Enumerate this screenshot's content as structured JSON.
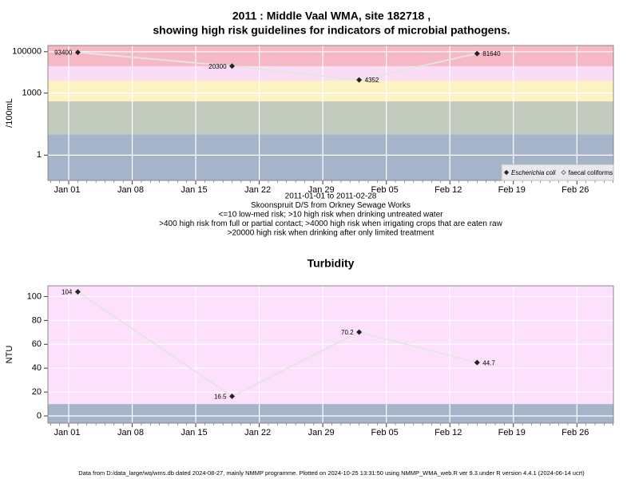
{
  "chart_data": [
    {
      "type": "line",
      "title": "2011 : Middle Vaal WMA, site 182718 ,",
      "subtitle": "showing high risk guidelines for indicators of microbial pathogens.",
      "ylabel": "/100mL",
      "log_scale": true,
      "grid": true,
      "legend": "bottom-right",
      "notes": [
        "2011-01-01 to 2011-02-28",
        "Skoonspruit D/S from Orkney Sewage Works",
        "<=10 low-med risk; >10 high risk when drinking untreated water",
        ">400 high risk from full or partial contact; >4000 high risk when irrigating crops that are eaten raw",
        ">20000 high risk when drinking after only limited treatment"
      ],
      "x": [
        "2011-01-02",
        "2011-01-19",
        "2011-02-02",
        "2011-02-15"
      ],
      "series": [
        {
          "name": "Escherichia coli",
          "color": "#222222",
          "values": [
            93400,
            20300,
            4352,
            81640
          ]
        },
        {
          "name": "faecal coliforms",
          "color": "#555555",
          "values": [
            null,
            null,
            null,
            null
          ]
        }
      ],
      "xlim": [
        "2011-01-01",
        "2011-02-28"
      ],
      "xticks": [
        {
          "value": "2011-01-01",
          "label": "Jan 01"
        },
        {
          "value": "2011-01-08",
          "label": "Jan 08"
        },
        {
          "value": "2011-01-15",
          "label": "Jan 15"
        },
        {
          "value": "2011-01-22",
          "label": "Jan 22"
        },
        {
          "value": "2011-01-29",
          "label": "Jan 29"
        },
        {
          "value": "2011-02-05",
          "label": "Feb 05"
        },
        {
          "value": "2011-02-12",
          "label": "Feb 12"
        },
        {
          "value": "2011-02-19",
          "label": "Feb 19"
        },
        {
          "value": "2011-02-26",
          "label": "Feb 26"
        }
      ],
      "ylim": [
        0.06,
        200000
      ],
      "yticks": [
        1,
        1000,
        100000
      ],
      "bands": [
        {
          "min": 0.06,
          "max": 10,
          "color": "#a6b4ca"
        },
        {
          "min": 10,
          "max": 400,
          "color": "#c3cbbe"
        },
        {
          "min": 400,
          "max": 4000,
          "color": "#fdf2c2"
        },
        {
          "min": 4000,
          "max": 20000,
          "color": "#fbdcf6"
        },
        {
          "min": 20000,
          "max": 200000,
          "color": "#f6b8c2"
        }
      ]
    },
    {
      "type": "line",
      "title": "Turbidity",
      "ylabel": "NTU",
      "grid": true,
      "x": [
        "2011-01-02",
        "2011-01-19",
        "2011-02-02",
        "2011-02-15"
      ],
      "series": [
        {
          "name": "Turbidity",
          "color": "#222222",
          "values": [
            104,
            16.5,
            70.2,
            44.7
          ]
        }
      ],
      "xlim": [
        "2011-01-01",
        "2011-02-28"
      ],
      "xticks": [
        {
          "value": "2011-01-01",
          "label": "Jan 01"
        },
        {
          "value": "2011-01-08",
          "label": "Jan 08"
        },
        {
          "value": "2011-01-15",
          "label": "Jan 15"
        },
        {
          "value": "2011-01-22",
          "label": "Jan 22"
        },
        {
          "value": "2011-01-29",
          "label": "Jan 29"
        },
        {
          "value": "2011-02-05",
          "label": "Feb 05"
        },
        {
          "value": "2011-02-12",
          "label": "Feb 12"
        },
        {
          "value": "2011-02-19",
          "label": "Feb 19"
        },
        {
          "value": "2011-02-26",
          "label": "Feb 26"
        }
      ],
      "ylim": [
        -6,
        109
      ],
      "yticks": [
        0,
        20,
        40,
        60,
        80,
        100
      ],
      "bands": [
        {
          "min": -6,
          "max": 10,
          "color": "#a6b4ca"
        },
        {
          "min": 10,
          "max": 109,
          "color": "#fde0fc"
        }
      ]
    }
  ],
  "footer": "Data from D:/data_large/wq/wms.db dated 2024-08-27, mainly NMMP programme. Plotted on 2024-10-25 13:31:50 using NMMP_WMA_web.R ver 9.3 under R version 4.4.1 (2024-06-14 ucrt)"
}
